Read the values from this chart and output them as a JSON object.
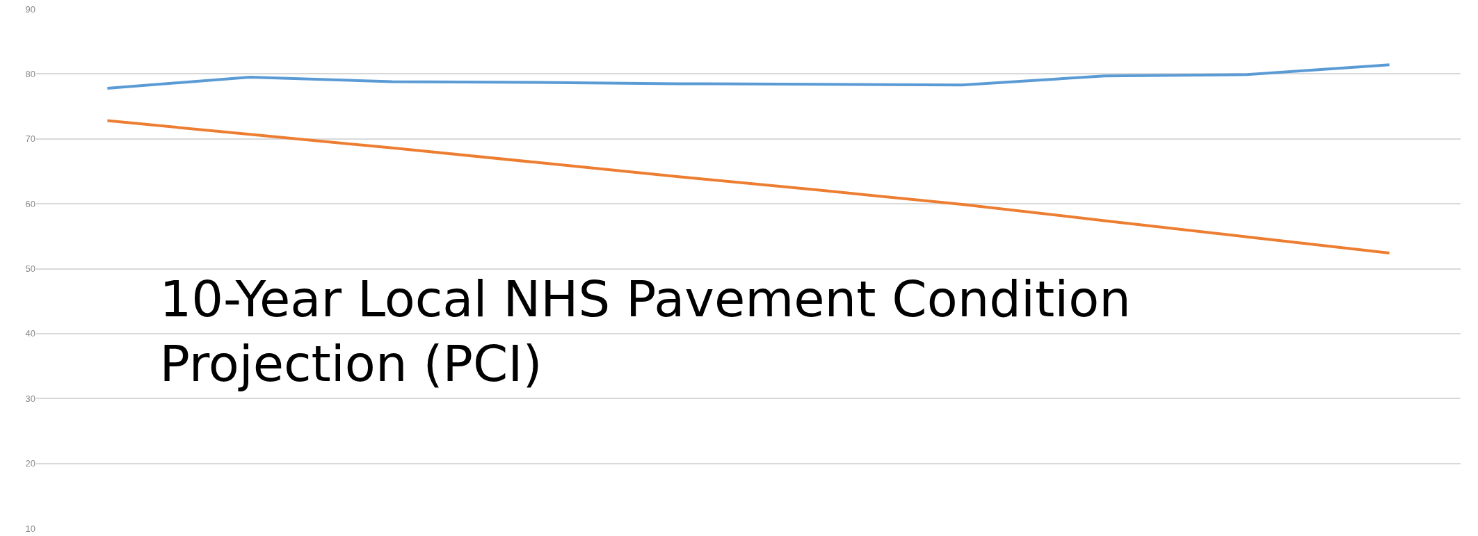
{
  "chart_data": {
    "type": "line",
    "title": "10-Year Local NHS Pavement Condition\nProjection (PCI)",
    "categories": [
      null,
      null,
      null,
      null,
      null,
      null,
      null,
      null,
      null,
      null
    ],
    "series": [
      {
        "color": "#5b9bd5",
        "values": [
          77.8,
          79.5,
          78.8,
          78.7,
          78.5,
          78.4,
          78.3,
          79.7,
          79.9,
          81.4
        ]
      },
      {
        "color": "#ed7d31",
        "values": [
          72.8,
          70.7,
          68.6,
          66.4,
          64.2,
          62.1,
          59.9,
          57.4,
          54.9,
          52.4
        ]
      }
    ],
    "ylim": [
      10,
      90
    ],
    "yticks": [
      10,
      20,
      30,
      40,
      50,
      60,
      70,
      80,
      90
    ],
    "grid": "y",
    "marker": "none",
    "line_style": "solid",
    "tick_labels": "y"
  }
}
